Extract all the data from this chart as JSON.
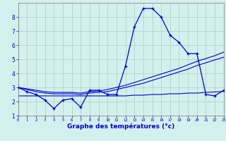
{
  "xlabel": "Graphe des températures (°c)",
  "background_color": "#d4f0ec",
  "grid_color": "#aed4ce",
  "line_color": "#0000cc",
  "hours": [
    0,
    1,
    2,
    3,
    4,
    5,
    6,
    7,
    8,
    9,
    10,
    11,
    12,
    13,
    14,
    15,
    16,
    17,
    18,
    19,
    20,
    21,
    22,
    23
  ],
  "temp_main": [
    3.0,
    2.7,
    2.5,
    2.1,
    1.5,
    2.1,
    2.2,
    1.6,
    2.8,
    2.8,
    2.5,
    2.5,
    4.5,
    7.3,
    8.6,
    8.6,
    8.0,
    6.7,
    6.2,
    5.4,
    5.4,
    2.5,
    2.4,
    2.8
  ],
  "temp_line1": [
    3.0,
    2.85,
    2.7,
    2.6,
    2.55,
    2.55,
    2.55,
    2.5,
    2.6,
    2.65,
    2.7,
    2.85,
    3.0,
    3.15,
    3.3,
    3.5,
    3.7,
    3.9,
    4.1,
    4.3,
    4.55,
    4.75,
    4.95,
    5.15
  ],
  "temp_line2": [
    3.0,
    2.9,
    2.8,
    2.7,
    2.65,
    2.65,
    2.65,
    2.6,
    2.7,
    2.75,
    2.85,
    3.0,
    3.15,
    3.35,
    3.55,
    3.75,
    3.95,
    4.15,
    4.35,
    4.6,
    4.85,
    5.05,
    5.25,
    5.5
  ],
  "temp_line3": [
    2.4,
    2.4,
    2.4,
    2.4,
    2.4,
    2.4,
    2.4,
    2.4,
    2.4,
    2.4,
    2.4,
    2.4,
    2.4,
    2.45,
    2.45,
    2.5,
    2.5,
    2.55,
    2.55,
    2.6,
    2.6,
    2.65,
    2.68,
    2.72
  ],
  "ylim": [
    1,
    9
  ],
  "xlim": [
    0,
    23
  ],
  "yticks": [
    1,
    2,
    3,
    4,
    5,
    6,
    7,
    8
  ],
  "xticks": [
    0,
    1,
    2,
    3,
    4,
    5,
    6,
    7,
    8,
    9,
    10,
    11,
    12,
    13,
    14,
    15,
    16,
    17,
    18,
    19,
    20,
    21,
    22,
    23
  ],
  "xtick_labels": [
    "0",
    "1",
    "2",
    "3",
    "4",
    "5",
    "6",
    "7",
    "8",
    "9",
    "10",
    "11",
    "12",
    "13",
    "14",
    "15",
    "16",
    "17",
    "18",
    "19",
    "20",
    "21",
    "22",
    "23"
  ]
}
